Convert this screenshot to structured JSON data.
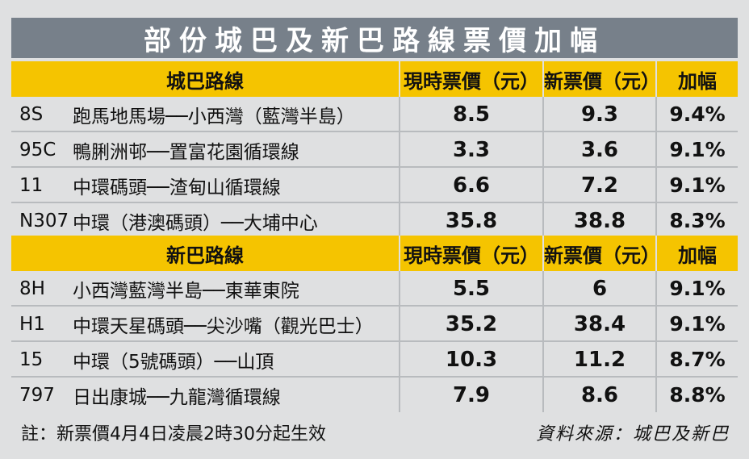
{
  "title": "部份城巴及新巴路線票價加幅",
  "columns": {
    "current": "現時票價（元）",
    "new": "新票價（元）",
    "increase": "加幅"
  },
  "groups": [
    {
      "name": "城巴路線",
      "rows": [
        {
          "code": "8S",
          "route": "跑馬地馬場──小西灣（藍灣半島）",
          "current": "8.5",
          "new": "9.3",
          "increase": "9.4%"
        },
        {
          "code": "95C",
          "route": "鴨脷洲邨──置富花園循環線",
          "current": "3.3",
          "new": "3.6",
          "increase": "9.1%"
        },
        {
          "code": "11",
          "route": "中環碼頭──渣甸山循環線",
          "current": "6.6",
          "new": "7.2",
          "increase": "9.1%"
        },
        {
          "code": "N307",
          "route": "中環（港澳碼頭）──大埔中心",
          "current": "35.8",
          "new": "38.8",
          "increase": "8.3%"
        }
      ]
    },
    {
      "name": "新巴路線",
      "rows": [
        {
          "code": "8H",
          "route": "小西灣藍灣半島──東華東院",
          "current": "5.5",
          "new": "6",
          "increase": "9.1%"
        },
        {
          "code": "H1",
          "route": "中環天星碼頭──尖沙嘴（觀光巴士）",
          "current": "35.2",
          "new": "38.4",
          "increase": "9.1%"
        },
        {
          "code": "15",
          "route": "中環（5號碼頭）──山頂",
          "current": "10.3",
          "new": "11.2",
          "increase": "8.7%"
        },
        {
          "code": "797",
          "route": "日出康城──九龍灣循環線",
          "current": "7.9",
          "new": "8.6",
          "increase": "8.8%"
        }
      ]
    }
  ],
  "footer": {
    "note": "註：新票價4月4日凌晨2時30分起生效",
    "source": "資料來源：城巴及新巴"
  },
  "chart_data": {
    "type": "table",
    "title": "部份城巴及新巴路線票價加幅",
    "columns": [
      "城巴路線",
      "現時票價（元）",
      "新票價（元）",
      "加幅"
    ],
    "rows": [
      [
        "8S 跑馬地馬場──小西灣（藍灣半島）",
        8.5,
        9.3,
        "9.4%"
      ],
      [
        "95C 鴨脷洲邨──置富花園循環線",
        3.3,
        3.6,
        "9.1%"
      ],
      [
        "11 中環碼頭──渣甸山循環線",
        6.6,
        7.2,
        "9.1%"
      ],
      [
        "N307 中環（港澳碼頭）──大埔中心",
        35.8,
        38.8,
        "8.3%"
      ],
      [
        "8H 小西灣藍灣半島──東華東院",
        5.5,
        6,
        "9.1%"
      ],
      [
        "H1 中環天星碼頭──尖沙嘴（觀光巴士）",
        35.2,
        38.4,
        "9.1%"
      ],
      [
        "15 中環（5號碼頭）──山頂",
        10.3,
        11.2,
        "8.7%"
      ],
      [
        "797 日出康城──九龍灣循環線",
        7.9,
        8.6,
        "8.8%"
      ]
    ]
  }
}
